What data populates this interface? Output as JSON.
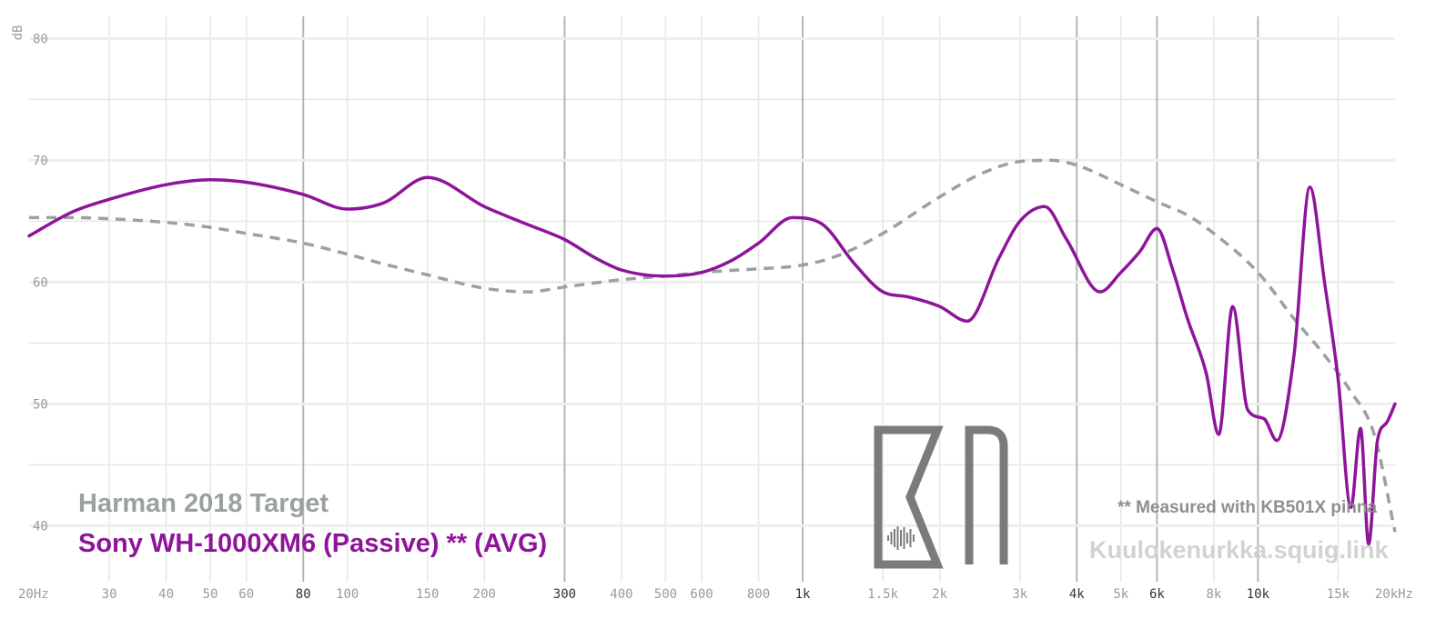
{
  "colors": {
    "target": "#9aa1a3",
    "measurement": "#8e1599",
    "grid_minor": "#e8e8e8",
    "grid_major": "#b5b5b5",
    "logo": "#7b7b7b"
  },
  "legend": {
    "target_label": "Harman 2018 Target",
    "measurement_label": "Sony WH-1000XM6 (Passive) ** (AVG)"
  },
  "notes": {
    "pinna": "** Measured with KB501X pinna",
    "site": "Kuulokenurkka.squig.link"
  },
  "logo": {
    "icon": "kn-logo-icon"
  },
  "chart_data": {
    "type": "line",
    "ylabel": "dB",
    "x_scale": "log",
    "xlim": [
      20,
      20000
    ],
    "ylim": [
      36,
      81
    ],
    "grid": true,
    "legend_position": "bottom-left",
    "x_ticks": [
      {
        "value": 20,
        "label": "20Hz",
        "major": false
      },
      {
        "value": 30,
        "label": "30",
        "major": false
      },
      {
        "value": 40,
        "label": "40",
        "major": false
      },
      {
        "value": 50,
        "label": "50",
        "major": false
      },
      {
        "value": 60,
        "label": "60",
        "major": false
      },
      {
        "value": 80,
        "label": "80",
        "major": true
      },
      {
        "value": 100,
        "label": "100",
        "major": false
      },
      {
        "value": 150,
        "label": "150",
        "major": false
      },
      {
        "value": 200,
        "label": "200",
        "major": false
      },
      {
        "value": 300,
        "label": "300",
        "major": true
      },
      {
        "value": 400,
        "label": "400",
        "major": false
      },
      {
        "value": 500,
        "label": "500",
        "major": false
      },
      {
        "value": 600,
        "label": "600",
        "major": false
      },
      {
        "value": 800,
        "label": "800",
        "major": false
      },
      {
        "value": 1000,
        "label": "1k",
        "major": true
      },
      {
        "value": 1500,
        "label": "1.5k",
        "major": false
      },
      {
        "value": 2000,
        "label": "2k",
        "major": false
      },
      {
        "value": 3000,
        "label": "3k",
        "major": false
      },
      {
        "value": 4000,
        "label": "4k",
        "major": true
      },
      {
        "value": 5000,
        "label": "5k",
        "major": false
      },
      {
        "value": 6000,
        "label": "6k",
        "major": true
      },
      {
        "value": 8000,
        "label": "8k",
        "major": false
      },
      {
        "value": 10000,
        "label": "10k",
        "major": true
      },
      {
        "value": 15000,
        "label": "15k",
        "major": false
      },
      {
        "value": 20000,
        "label": "20kHz",
        "major": false
      }
    ],
    "y_ticks": [
      {
        "value": 40,
        "label": "40"
      },
      {
        "value": 50,
        "label": "50"
      },
      {
        "value": 60,
        "label": "60"
      },
      {
        "value": 70,
        "label": "70"
      },
      {
        "value": 80,
        "label": "80"
      }
    ],
    "series": [
      {
        "name": "Harman 2018 Target",
        "style": "dashed",
        "x": [
          20,
          25,
          30,
          40,
          50,
          60,
          80,
          100,
          120,
          150,
          200,
          250,
          300,
          400,
          500,
          600,
          800,
          1000,
          1200,
          1500,
          2000,
          2500,
          3000,
          3500,
          4000,
          5000,
          6000,
          7000,
          8000,
          10000,
          12000,
          14000,
          16000,
          18000,
          20000
        ],
        "y": [
          65.3,
          65.3,
          65.2,
          64.9,
          64.5,
          64.0,
          63.2,
          62.3,
          61.5,
          60.6,
          59.5,
          59.2,
          59.6,
          60.2,
          60.5,
          60.8,
          61.1,
          61.4,
          62.2,
          64.0,
          67.0,
          69.0,
          69.9,
          70.0,
          69.6,
          68.0,
          66.6,
          65.5,
          64.0,
          60.8,
          57.0,
          54.0,
          51.0,
          47.5,
          39.5
        ]
      },
      {
        "name": "Sony WH-1000XM6 (Passive) ** (AVG)",
        "style": "solid",
        "x": [
          20,
          25,
          30,
          40,
          50,
          60,
          80,
          100,
          120,
          150,
          200,
          250,
          300,
          350,
          400,
          500,
          600,
          700,
          800,
          950,
          1100,
          1300,
          1500,
          1700,
          2000,
          2300,
          2700,
          3000,
          3400,
          3800,
          4500,
          5000,
          5500,
          6000,
          6500,
          7000,
          7700,
          8200,
          8800,
          9500,
          10300,
          11000,
          12000,
          13000,
          14000,
          15000,
          16000,
          16800,
          17500,
          18300,
          19200,
          20000
        ],
        "y": [
          63.8,
          65.8,
          66.8,
          68.0,
          68.4,
          68.2,
          67.2,
          66.0,
          66.5,
          68.6,
          66.2,
          64.7,
          63.5,
          62.0,
          61.0,
          60.5,
          60.8,
          61.8,
          63.2,
          65.3,
          64.8,
          61.5,
          59.2,
          58.8,
          58.0,
          56.8,
          62.0,
          65.0,
          66.2,
          63.5,
          59.2,
          60.8,
          62.5,
          64.4,
          61.0,
          57.0,
          52.5,
          47.5,
          58.0,
          49.5,
          48.8,
          47.0,
          54.0,
          67.8,
          60.0,
          52.0,
          41.5,
          48.0,
          38.5,
          47.0,
          48.5,
          50.0
        ]
      }
    ]
  }
}
